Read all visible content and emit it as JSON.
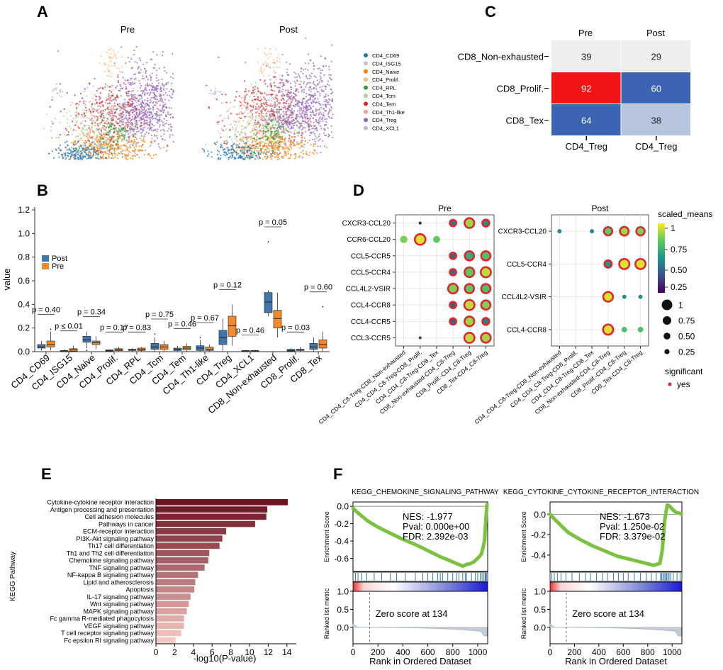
{
  "panel_letters": {
    "a": "A",
    "b": "B",
    "c": "C",
    "d": "D",
    "e": "E",
    "f": "F"
  },
  "panel_a": {
    "titles": [
      "Pre",
      "Post"
    ],
    "legend": [
      {
        "label": "CD4_CD69",
        "color": "#1f77b4"
      },
      {
        "label": "CD4_ISG15",
        "color": "#aec7e8"
      },
      {
        "label": "CD4_Naive",
        "color": "#ff7f0e"
      },
      {
        "label": "CD4_Prolif.",
        "color": "#ffbb78"
      },
      {
        "label": "CD4_RPL",
        "color": "#2ca02c"
      },
      {
        "label": "CD4_Tcm",
        "color": "#98df8a"
      },
      {
        "label": "CD4_Tem",
        "color": "#d62728"
      },
      {
        "label": "CD4_Th1-like",
        "color": "#ff9896"
      },
      {
        "label": "CD4_Treg",
        "color": "#9467bd"
      },
      {
        "label": "CD4_XCL1",
        "color": "#c5b0d5"
      }
    ]
  },
  "panel_c": {
    "columns": [
      "Pre",
      "Post"
    ],
    "rows": [
      "CD8_Non-exhausted",
      "CD8_Prolif.",
      "CD8_Tex"
    ],
    "col_tick": "CD4_Treg",
    "values": [
      [
        39,
        29
      ],
      [
        92,
        60
      ],
      [
        64,
        38
      ]
    ],
    "colors": [
      [
        "#eeeeee",
        "#eeeeee"
      ],
      [
        "#f01414",
        "#3d63b3"
      ],
      [
        "#3d63b3",
        "#b7c4de"
      ]
    ]
  },
  "chart_data": [
    {
      "id": "B",
      "type": "box",
      "ylabel": "value",
      "ylim": [
        0,
        1.2
      ],
      "yticks": [
        0.0,
        0.2,
        0.4,
        0.6,
        0.8,
        1.0,
        1.2
      ],
      "legend": [
        {
          "name": "Post",
          "color": "#3f77ad"
        },
        {
          "name": "Pre",
          "color": "#f28a2c"
        }
      ],
      "categories": [
        "CD4_CD69",
        "CD4_ISG15",
        "CD4_Naive",
        "CD4_Prolif.",
        "CD4_RPL",
        "CD4_Tcm",
        "CD4_Tem",
        "CD4_Th1-like",
        "CD4_Treg",
        "CD4_XCL1",
        "CD8_Non-exhausted",
        "CD8_Prolif.",
        "CD8_Tex"
      ],
      "pvalues": [
        "p = 0.40",
        "p ≤ 0.01",
        "p = 0.34",
        "p = 0.17",
        "p = 0.83",
        "p = 0.75",
        "p = 0.46",
        "p = 0.67",
        "p = 0.12",
        "p = 0.46",
        "p = 0.05",
        "p = 0.03",
        "p = 0.60"
      ],
      "post": [
        {
          "min": 0.01,
          "q1": 0.03,
          "med": 0.04,
          "q3": 0.06,
          "max": 0.09,
          "out": []
        },
        {
          "min": 0.0,
          "q1": 0.0,
          "med": 0.005,
          "q3": 0.01,
          "max": 0.02,
          "out": []
        },
        {
          "min": 0.03,
          "q1": 0.08,
          "med": 0.1,
          "q3": 0.13,
          "max": 0.17,
          "out": [
            0.01
          ]
        },
        {
          "min": 0.0,
          "q1": 0.005,
          "med": 0.01,
          "q3": 0.015,
          "max": 0.02,
          "out": []
        },
        {
          "min": 0.0,
          "q1": 0.01,
          "med": 0.015,
          "q3": 0.02,
          "max": 0.03,
          "out": []
        },
        {
          "min": 0.0,
          "q1": 0.02,
          "med": 0.04,
          "q3": 0.07,
          "max": 0.12,
          "out": [
            0.15
          ]
        },
        {
          "min": 0.0,
          "q1": 0.01,
          "med": 0.02,
          "q3": 0.03,
          "max": 0.05,
          "out": []
        },
        {
          "min": 0.0,
          "q1": 0.01,
          "med": 0.03,
          "q3": 0.05,
          "max": 0.1,
          "out": [
            0.12
          ]
        },
        {
          "min": 0.0,
          "q1": 0.06,
          "med": 0.12,
          "q3": 0.18,
          "max": 0.28,
          "out": []
        },
        {
          "min": 0.0,
          "q1": 0.0,
          "med": 0.005,
          "q3": 0.01,
          "max": 0.015,
          "out": []
        },
        {
          "min": 0.3,
          "q1": 0.33,
          "med": 0.42,
          "q3": 0.5,
          "max": 0.52,
          "out": [
            0.93
          ]
        },
        {
          "min": 0.0,
          "q1": 0.005,
          "med": 0.01,
          "q3": 0.02,
          "max": 0.03,
          "out": []
        },
        {
          "min": 0.0,
          "q1": 0.02,
          "med": 0.04,
          "q3": 0.07,
          "max": 0.12,
          "out": []
        }
      ],
      "pre": [
        {
          "min": 0.01,
          "q1": 0.04,
          "med": 0.06,
          "q3": 0.09,
          "max": 0.17,
          "out": [
            0.19
          ]
        },
        {
          "min": 0.0,
          "q1": 0.005,
          "med": 0.015,
          "q3": 0.025,
          "max": 0.05,
          "out": []
        },
        {
          "min": 0.02,
          "q1": 0.06,
          "med": 0.075,
          "q3": 0.09,
          "max": 0.13,
          "out": []
        },
        {
          "min": 0.0,
          "q1": 0.008,
          "med": 0.015,
          "q3": 0.025,
          "max": 0.04,
          "out": []
        },
        {
          "min": 0.0,
          "q1": 0.01,
          "med": 0.02,
          "q3": 0.03,
          "max": 0.04,
          "out": []
        },
        {
          "min": 0.0,
          "q1": 0.02,
          "med": 0.04,
          "q3": 0.06,
          "max": 0.09,
          "out": []
        },
        {
          "min": 0.0,
          "q1": 0.015,
          "med": 0.03,
          "q3": 0.045,
          "max": 0.07,
          "out": []
        },
        {
          "min": 0.0,
          "q1": 0.01,
          "med": 0.02,
          "q3": 0.04,
          "max": 0.06,
          "out": []
        },
        {
          "min": 0.05,
          "q1": 0.13,
          "med": 0.22,
          "q3": 0.3,
          "max": 0.4,
          "out": []
        },
        {
          "min": 0.0,
          "q1": 0.0,
          "med": 0.005,
          "q3": 0.01,
          "max": 0.015,
          "out": []
        },
        {
          "min": 0.12,
          "q1": 0.2,
          "med": 0.28,
          "q3": 0.35,
          "max": 0.5,
          "out": []
        },
        {
          "min": 0.0,
          "q1": 0.01,
          "med": 0.015,
          "q3": 0.02,
          "max": 0.04,
          "out": []
        },
        {
          "min": 0.0,
          "q1": 0.03,
          "med": 0.06,
          "q3": 0.1,
          "max": 0.17,
          "out": [
            0.38
          ]
        }
      ]
    },
    {
      "id": "D",
      "type": "dotplot",
      "color_label": "scaled_means",
      "color_ticks": [
        "1",
        "0.75",
        "0.50",
        "0.25"
      ],
      "size_ticks": [
        "1",
        "0.75",
        "0.50",
        "0.25"
      ],
      "significant_label": "significant",
      "significant_value": "yes",
      "panels": [
        {
          "title": "Pre",
          "rows": [
            "CXCR3-CCL20",
            "CCR6-CCL20",
            "CCL5-CCR5",
            "CCL5-CCR4",
            "CCL4L2-VSIR",
            "CCL4-CCR8",
            "CCL4-CCR5",
            "CCL3-CCR5"
          ],
          "cols": [
            "CD4_CD4_C8-Treg-CD8_Non-exhausted",
            "CD4_CD4_C8-Treg-CD8_Prolif.",
            "CD4_CD4_C8-Treg-CD8_Tex",
            "CD8_Non-exhausted-CD4_C8-Treg",
            "CD8_Prolif.-CD4_C8-Treg",
            "CD8_Tex-CD4_C8-Treg"
          ],
          "points": [
            [
              0,
              1,
              0.05,
              0.15,
              false
            ],
            [
              0,
              3,
              0.4,
              0.55,
              true
            ],
            [
              0,
              4,
              0.85,
              0.9,
              true
            ],
            [
              0,
              5,
              0.5,
              0.6,
              true
            ],
            [
              1,
              0,
              0.8,
              0.65,
              false
            ],
            [
              1,
              1,
              0.95,
              1.0,
              true
            ],
            [
              1,
              2,
              0.75,
              0.6,
              false
            ],
            [
              2,
              3,
              0.35,
              0.55,
              true
            ],
            [
              2,
              4,
              0.6,
              0.85,
              true
            ],
            [
              2,
              5,
              0.7,
              0.85,
              true
            ],
            [
              3,
              3,
              0.35,
              0.55,
              true
            ],
            [
              3,
              4,
              0.75,
              0.9,
              true
            ],
            [
              3,
              5,
              0.9,
              0.95,
              true
            ],
            [
              4,
              3,
              0.8,
              0.9,
              true
            ],
            [
              4,
              4,
              0.75,
              0.85,
              true
            ],
            [
              4,
              5,
              0.7,
              0.85,
              true
            ],
            [
              5,
              3,
              0.3,
              0.55,
              true
            ],
            [
              5,
              4,
              0.9,
              0.95,
              true
            ],
            [
              5,
              5,
              0.8,
              0.85,
              true
            ],
            [
              6,
              3,
              0.3,
              0.55,
              true
            ],
            [
              6,
              4,
              0.85,
              0.9,
              true
            ],
            [
              6,
              5,
              0.45,
              0.6,
              true
            ],
            [
              7,
              1,
              0.15,
              0.15,
              false
            ],
            [
              7,
              4,
              0.9,
              0.95,
              true
            ],
            [
              7,
              5,
              0.85,
              0.9,
              true
            ]
          ]
        },
        {
          "title": "Post",
          "rows": [
            "CXCR3-CCL20",
            "CCL5-CCR4",
            "CCL4L2-VSIR",
            "CCL4-CCR8"
          ],
          "cols": [
            "CD4_CD4_C8-Treg-CD8_Non-exhausted",
            "CD4_CD4_C8-Treg-CD8_Prolif.",
            "CD4_CD4_C8-Treg-CD8_Tex",
            "CD8_Non-exhausted-CD4_C8-Treg",
            "CD8_Prolif.-CD4_C8-Treg",
            "CD8_Tex-CD4_C8-Treg"
          ],
          "points": [
            [
              0,
              0,
              0.45,
              0.3,
              false
            ],
            [
              0,
              2,
              0.45,
              0.3,
              false
            ],
            [
              0,
              3,
              0.75,
              0.75,
              true
            ],
            [
              0,
              4,
              0.85,
              0.8,
              true
            ],
            [
              0,
              5,
              0.8,
              0.75,
              true
            ],
            [
              1,
              3,
              0.5,
              0.65,
              true
            ],
            [
              1,
              4,
              0.95,
              0.95,
              true
            ],
            [
              1,
              5,
              0.95,
              0.95,
              true
            ],
            [
              2,
              3,
              0.95,
              0.9,
              true
            ],
            [
              2,
              4,
              0.5,
              0.3,
              false
            ],
            [
              2,
              5,
              0.5,
              0.3,
              false
            ],
            [
              3,
              3,
              0.95,
              0.95,
              true
            ],
            [
              3,
              4,
              0.7,
              0.45,
              false
            ],
            [
              3,
              5,
              0.7,
              0.45,
              false
            ]
          ]
        }
      ]
    },
    {
      "id": "E",
      "type": "bar",
      "orientation": "horizontal",
      "xlabel": "-log10(P-value)",
      "ylabel": "KEGG Pathway",
      "xlim": [
        0,
        15
      ],
      "xticks": [
        0,
        2,
        4,
        6,
        8,
        10,
        12,
        14
      ],
      "categories": [
        "Cytokine-cytokine receptor interaction",
        "Antigen processing and presentation",
        "Cell adhesion molecules",
        "Pathways in cancer",
        "ECM-receptor interaction",
        "PI3K-Akt signaling pathway",
        "Th17 cell differentiation",
        "Th1 and Th2 cell differentiation",
        "Chemokine signaling pathway",
        "TNF signaling pathway",
        "NF-kappa B signaling pathway",
        "Lipid and atherosclerosis",
        "Apoptosis",
        "IL-17 signaling pathway",
        "Wnt signaling pathway",
        "MAPK signaling pathway",
        "Fc gamma R-mediated phagocytosis",
        "VEGF signaling pathway",
        "T cell receptor signaling pathway",
        "Fc epsilon RI signaling pathway"
      ],
      "values": [
        14.1,
        11.9,
        11.8,
        10.6,
        7.5,
        7.1,
        6.8,
        5.7,
        5.6,
        5.2,
        4.5,
        4.2,
        4.1,
        3.7,
        3.5,
        3.3,
        3.0,
        3.0,
        2.7,
        2.1
      ]
    },
    {
      "id": "F",
      "type": "gsea",
      "xlabel": "Rank in Ordered Dataset",
      "ylabel_top": "Enrichment Score",
      "ylabel_bottom": "Ranked list metric",
      "xlim": [
        0,
        1080
      ],
      "xticks": [
        0,
        200,
        400,
        600,
        800,
        1000
      ],
      "panels": [
        {
          "title": "KEGG_CHEMOKINE_SIGNALING_PATHWAY",
          "nes": "NES: -1.977",
          "pval": "Pval: 0.000e+00",
          "fdr": "FDR: 2.392e-03",
          "zero_text": "Zero score at 134",
          "zero_x": 134,
          "ylim": [
            -0.75,
            0.05
          ],
          "yticks": [
            0.0,
            -0.2,
            -0.4,
            -0.6
          ],
          "ytick_labels": [
            "0.0",
            "-0.2",
            "-0.4",
            "-0.6"
          ],
          "curve_x": [
            0,
            20,
            60,
            120,
            200,
            300,
            400,
            500,
            600,
            700,
            800,
            880,
            910,
            940,
            970,
            1000,
            1030,
            1055,
            1068,
            1075
          ],
          "curve_y": [
            -0.02,
            -0.05,
            -0.1,
            -0.17,
            -0.24,
            -0.31,
            -0.38,
            -0.44,
            -0.51,
            -0.58,
            -0.64,
            -0.69,
            -0.67,
            -0.66,
            -0.64,
            -0.6,
            -0.55,
            -0.4,
            -0.1,
            0.02
          ],
          "hits": [
            20,
            40,
            70,
            110,
            170,
            230,
            300,
            350,
            420,
            500,
            560,
            600,
            640,
            680,
            700,
            720,
            760,
            800,
            830,
            850,
            880,
            900,
            910,
            950,
            980,
            1000,
            1020,
            1035,
            1050,
            1060,
            1065,
            1070
          ]
        },
        {
          "title": "KEGG_CYTOKINE_CYTOKINE_RECEPTOR_INTERACTION",
          "nes": "NES: -1.673",
          "pval": "Pval: 1.250e-02",
          "fdr": "FDR: 3.379e-02",
          "zero_text": "Zero score at 134",
          "zero_x": 134,
          "ylim": [
            -0.56,
            0.12
          ],
          "yticks": [
            0.0,
            -0.2,
            -0.4
          ],
          "ytick_labels": [
            "0.0",
            "-0.2",
            "-0.4"
          ],
          "curve_x": [
            0,
            30,
            80,
            150,
            250,
            350,
            450,
            550,
            650,
            750,
            850,
            900,
            920,
            940,
            960,
            980,
            1000,
            1030,
            1060,
            1075
          ],
          "curve_y": [
            0.0,
            -0.04,
            -0.1,
            -0.18,
            -0.25,
            -0.31,
            -0.36,
            -0.41,
            -0.44,
            -0.47,
            -0.5,
            -0.48,
            -0.35,
            -0.05,
            0.09,
            0.08,
            0.05,
            0.02,
            0.01,
            0.0
          ],
          "hits": [
            15,
            35,
            60,
            90,
            130,
            180,
            240,
            290,
            330,
            380,
            430,
            470,
            520,
            560,
            600,
            640,
            690,
            740,
            790,
            830,
            870,
            905,
            915,
            925,
            935,
            945,
            955,
            965,
            975,
            990,
            1010,
            1040,
            1065
          ]
        }
      ]
    }
  ]
}
